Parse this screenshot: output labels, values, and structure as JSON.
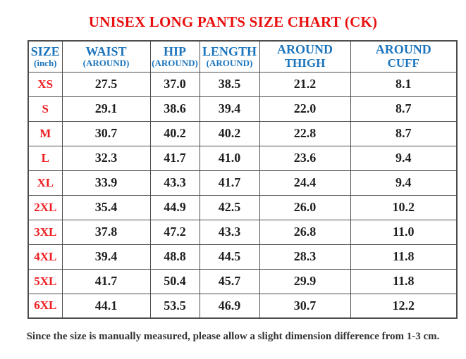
{
  "title": "UNISEX LONG PANTS SIZE CHART (CK)",
  "footnote": "Since the size is manually measured, please allow a slight dimension difference from 1-3 cm.",
  "colors": {
    "title_red": "#e8100f",
    "size_label_red": "#ed1c20",
    "header_blue": "#1c75bc",
    "border_gray": "#4d4d4d",
    "value_black": "#1f1f1f",
    "background": "#ffffff"
  },
  "table": {
    "columns": [
      {
        "id": "size",
        "line1": "SIZE",
        "line2": "(inch)"
      },
      {
        "id": "waist",
        "line1": "WAIST",
        "line2": "(AROUND)"
      },
      {
        "id": "hip",
        "line1": "HIP",
        "line2": "(AROUND)"
      },
      {
        "id": "length",
        "line1": "LENGTH",
        "line2": "(AROUND)"
      },
      {
        "id": "around-thigh",
        "line1": "AROUND",
        "line2": "THIGH"
      },
      {
        "id": "around-cuff",
        "line1": "AROUND",
        "line2": "CUFF"
      }
    ],
    "rows": [
      [
        "XS",
        "27.5",
        "37.0",
        "38.5",
        "21.2",
        "8.1"
      ],
      [
        "S",
        "29.1",
        "38.6",
        "39.4",
        "22.0",
        "8.7"
      ],
      [
        "M",
        "30.7",
        "40.2",
        "40.2",
        "22.8",
        "8.7"
      ],
      [
        "L",
        "32.3",
        "41.7",
        "41.0",
        "23.6",
        "9.4"
      ],
      [
        "XL",
        "33.9",
        "43.3",
        "41.7",
        "24.4",
        "9.4"
      ],
      [
        "2XL",
        "35.4",
        "44.9",
        "42.5",
        "26.0",
        "10.2"
      ],
      [
        "3XL",
        "37.8",
        "47.2",
        "43.3",
        "26.8",
        "11.0"
      ],
      [
        "4XL",
        "39.4",
        "48.8",
        "44.5",
        "28.3",
        "11.8"
      ],
      [
        "5XL",
        "41.7",
        "50.4",
        "45.7",
        "29.9",
        "11.8"
      ],
      [
        "6XL",
        "44.1",
        "53.5",
        "46.9",
        "30.7",
        "12.2"
      ]
    ]
  },
  "chart_data": {
    "type": "table",
    "title": "UNISEX LONG PANTS SIZE CHART (CK)",
    "unit": "inch",
    "columns": [
      "SIZE (inch)",
      "WAIST (AROUND)",
      "HIP (AROUND)",
      "LENGTH (AROUND)",
      "AROUND THIGH",
      "AROUND CUFF"
    ],
    "categories": [
      "XS",
      "S",
      "M",
      "L",
      "XL",
      "2XL",
      "3XL",
      "4XL",
      "5XL",
      "6XL"
    ],
    "series": [
      {
        "name": "WAIST (AROUND)",
        "values": [
          27.5,
          29.1,
          30.7,
          32.3,
          33.9,
          35.4,
          37.8,
          39.4,
          41.7,
          44.1
        ]
      },
      {
        "name": "HIP (AROUND)",
        "values": [
          37.0,
          38.6,
          40.2,
          41.7,
          43.3,
          44.9,
          47.2,
          48.8,
          50.4,
          53.5
        ]
      },
      {
        "name": "LENGTH (AROUND)",
        "values": [
          38.5,
          39.4,
          40.2,
          41.0,
          41.7,
          42.5,
          43.3,
          44.5,
          45.7,
          46.9
        ]
      },
      {
        "name": "AROUND THIGH",
        "values": [
          21.2,
          22.0,
          22.8,
          23.6,
          24.4,
          26.0,
          26.8,
          28.3,
          29.9,
          30.7
        ]
      },
      {
        "name": "AROUND CUFF",
        "values": [
          8.1,
          8.7,
          8.7,
          9.4,
          9.4,
          10.2,
          11.0,
          11.8,
          11.8,
          12.2
        ]
      }
    ],
    "annotations": [
      "Since the size is manually measured, please allow a slight dimension difference from 1-3 cm."
    ]
  }
}
